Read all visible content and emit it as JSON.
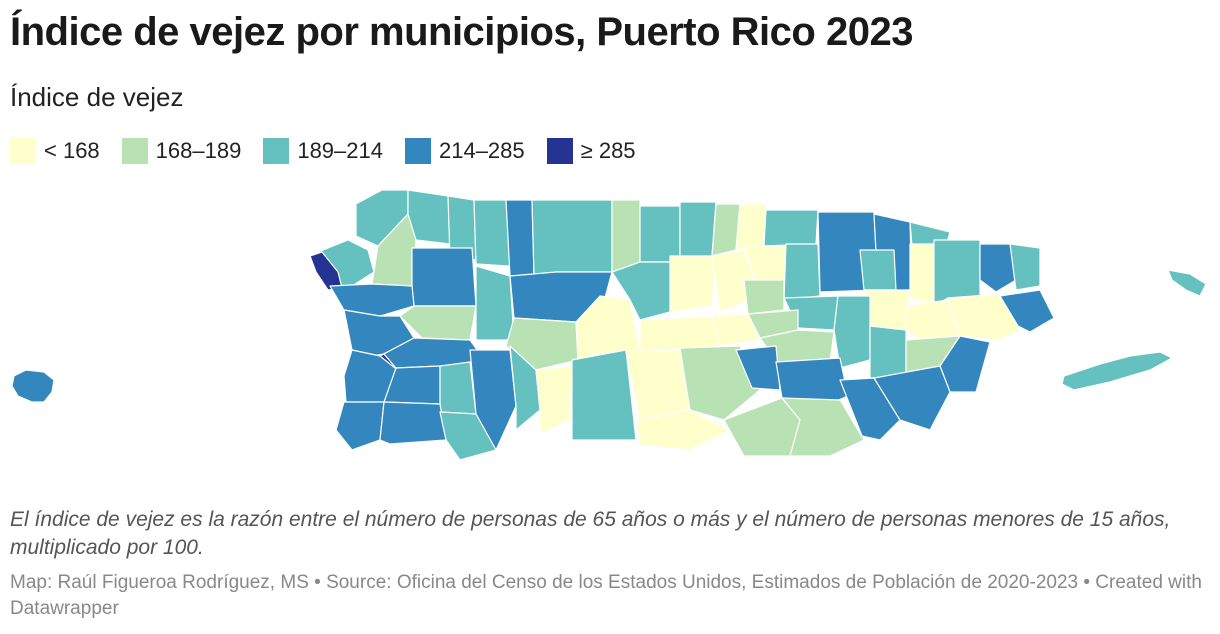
{
  "header": {
    "title": "Índice de vejez por municipios, Puerto Rico 2023",
    "subtitle": "Índice de vejez"
  },
  "legend": [
    {
      "label": "< 168",
      "color": "#ffffcc"
    },
    {
      "label": "168–189",
      "color": "#b8e2b4"
    },
    {
      "label": "189–214",
      "color": "#64c1c0"
    },
    {
      "label": "214–285",
      "color": "#3387be"
    },
    {
      "label": "≥ 285",
      "color": "#253393"
    }
  ],
  "map": {
    "region": "Puerto Rico",
    "border_color": "#ffffff"
  },
  "footer": {
    "note": "El índice de vejez es la razón entre el número de personas de 65 años o más y el número de personas menores de 15 años, multiplicado por 100.",
    "source": "Map: Raúl Figueroa Rodríguez, MS • Source: Oficina del Censo de los Estados Unidos, Estimados de Población de 2020-2023 • Created with Datawrapper"
  }
}
